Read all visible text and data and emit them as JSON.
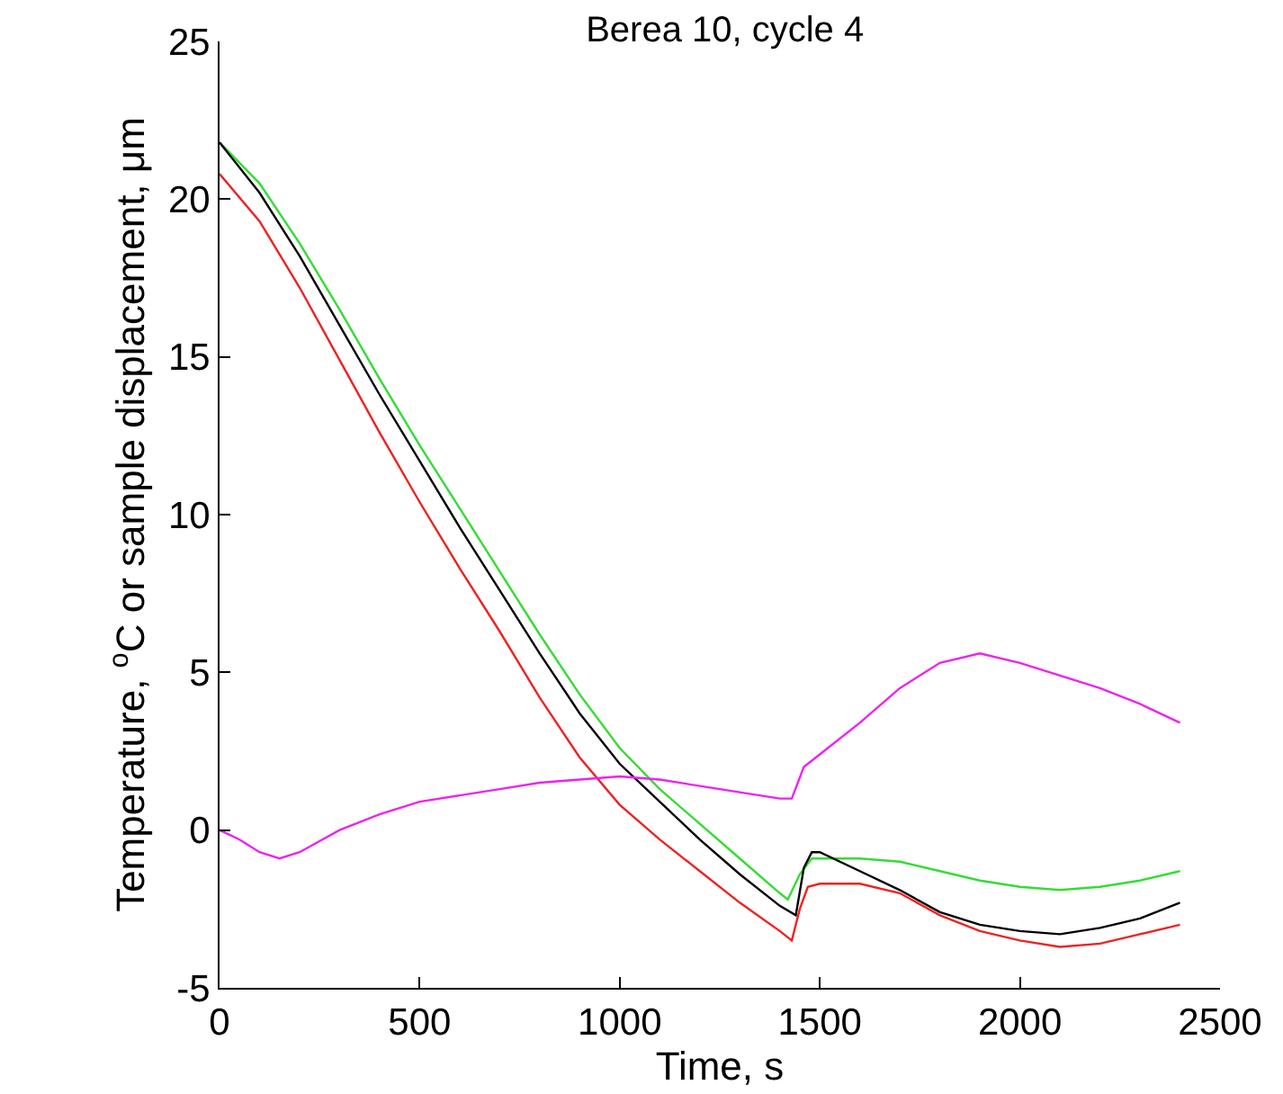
{
  "chart_data": {
    "type": "line",
    "title": "Berea 10, cycle 4",
    "xlabel": "Time, s",
    "ylabel": "Temperature, $^{o}$C or sample displacement, μm",
    "xlim": [
      0,
      2500
    ],
    "xticks": [
      0,
      500,
      1000,
      1500,
      2000,
      2500
    ],
    "ylim": [
      -5,
      25
    ],
    "yticks": [
      -5,
      0,
      5,
      10,
      15,
      20,
      25
    ],
    "grid": false,
    "marker": "none",
    "line_style": "solid",
    "series": [
      {
        "color": "#33dd33",
        "x": [
          0,
          100,
          200,
          300,
          400,
          500,
          600,
          700,
          800,
          900,
          1000,
          1100,
          1200,
          1300,
          1400,
          1420,
          1450,
          1480,
          1600,
          1700,
          1800,
          1900,
          2000,
          2100,
          2200,
          2300,
          2400
        ],
        "values": [
          21.8,
          20.5,
          18.6,
          16.5,
          14.3,
          12.2,
          10.2,
          8.2,
          6.2,
          4.3,
          2.6,
          1.3,
          0.2,
          -0.9,
          -2.0,
          -2.2,
          -1.4,
          -0.9,
          -0.9,
          -1.0,
          -1.3,
          -1.6,
          -1.8,
          -1.9,
          -1.8,
          -1.6,
          -1.3
        ]
      },
      {
        "color": "#000000",
        "x": [
          0,
          100,
          200,
          300,
          400,
          500,
          600,
          700,
          800,
          900,
          1000,
          1100,
          1200,
          1300,
          1400,
          1440,
          1460,
          1480,
          1500,
          1600,
          1700,
          1800,
          1900,
          2000,
          2100,
          2200,
          2300,
          2400
        ],
        "values": [
          21.8,
          20.2,
          18.2,
          16.0,
          13.8,
          11.7,
          9.6,
          7.6,
          5.6,
          3.7,
          2.1,
          0.9,
          -0.3,
          -1.4,
          -2.4,
          -2.7,
          -1.2,
          -0.7,
          -0.7,
          -1.3,
          -1.9,
          -2.6,
          -3.0,
          -3.2,
          -3.3,
          -3.1,
          -2.8,
          -2.3
        ]
      },
      {
        "color": "#ee2222",
        "x": [
          0,
          100,
          200,
          300,
          400,
          500,
          600,
          700,
          800,
          900,
          1000,
          1100,
          1200,
          1300,
          1400,
          1430,
          1450,
          1470,
          1500,
          1600,
          1700,
          1800,
          1900,
          2000,
          2100,
          2200,
          2300,
          2400
        ],
        "values": [
          20.8,
          19.3,
          17.2,
          14.9,
          12.6,
          10.4,
          8.3,
          6.3,
          4.2,
          2.3,
          0.8,
          -0.3,
          -1.3,
          -2.3,
          -3.2,
          -3.5,
          -2.5,
          -1.8,
          -1.7,
          -1.7,
          -2.0,
          -2.7,
          -3.2,
          -3.5,
          -3.7,
          -3.6,
          -3.3,
          -3.0
        ]
      },
      {
        "color": "#ee22ee",
        "x": [
          0,
          50,
          100,
          150,
          200,
          300,
          400,
          500,
          600,
          700,
          800,
          900,
          1000,
          1100,
          1200,
          1300,
          1400,
          1430,
          1460,
          1500,
          1600,
          1700,
          1800,
          1900,
          2000,
          2100,
          2200,
          2300,
          2400
        ],
        "values": [
          0,
          -0.3,
          -0.7,
          -0.9,
          -0.7,
          0.0,
          0.5,
          0.9,
          1.1,
          1.3,
          1.5,
          1.6,
          1.7,
          1.6,
          1.4,
          1.2,
          1.0,
          1.0,
          2.0,
          2.4,
          3.4,
          4.5,
          5.3,
          5.6,
          5.3,
          4.9,
          4.5,
          4.0,
          3.4
        ]
      }
    ]
  }
}
